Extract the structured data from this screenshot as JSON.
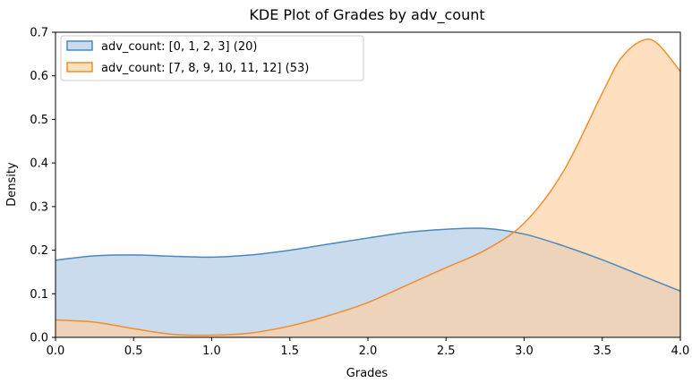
{
  "chart_data": {
    "type": "area",
    "title": "KDE Plot of Grades by adv_count",
    "xlabel": "Grades",
    "ylabel": "Density",
    "xlim": [
      0.0,
      4.0
    ],
    "ylim": [
      0.0,
      0.7
    ],
    "xticks": [
      "0.0",
      "0.5",
      "1.0",
      "1.5",
      "2.0",
      "2.5",
      "3.0",
      "3.5",
      "4.0"
    ],
    "yticks": [
      "0.0",
      "0.1",
      "0.2",
      "0.3",
      "0.4",
      "0.5",
      "0.6",
      "0.7"
    ],
    "legend_position": "top-left",
    "grid": false,
    "series": [
      {
        "name": "adv_count: [0, 1, 2, 3] (20)",
        "line_color": "#4a89bf",
        "fill_color": "#aec8e4",
        "x": [
          0.0,
          0.25,
          0.5,
          0.75,
          1.0,
          1.25,
          1.5,
          1.75,
          2.0,
          2.25,
          2.5,
          2.75,
          3.0,
          3.25,
          3.5,
          3.75,
          4.0
        ],
        "y": [
          0.177,
          0.187,
          0.189,
          0.186,
          0.184,
          0.189,
          0.2,
          0.214,
          0.228,
          0.241,
          0.248,
          0.25,
          0.237,
          0.21,
          0.178,
          0.142,
          0.106
        ]
      },
      {
        "name": "adv_count: [7, 8, 9, 10, 11, 12] (53)",
        "line_color": "#f28e2b",
        "fill_color": "#fdcf9e",
        "x": [
          0.0,
          0.25,
          0.5,
          0.75,
          1.0,
          1.25,
          1.5,
          1.75,
          2.0,
          2.25,
          2.5,
          2.75,
          3.0,
          3.25,
          3.5,
          3.62,
          3.75,
          3.85,
          4.0
        ],
        "y": [
          0.04,
          0.035,
          0.02,
          0.007,
          0.005,
          0.01,
          0.026,
          0.05,
          0.08,
          0.12,
          0.16,
          0.2,
          0.262,
          0.38,
          0.56,
          0.64,
          0.68,
          0.675,
          0.61
        ]
      }
    ]
  }
}
